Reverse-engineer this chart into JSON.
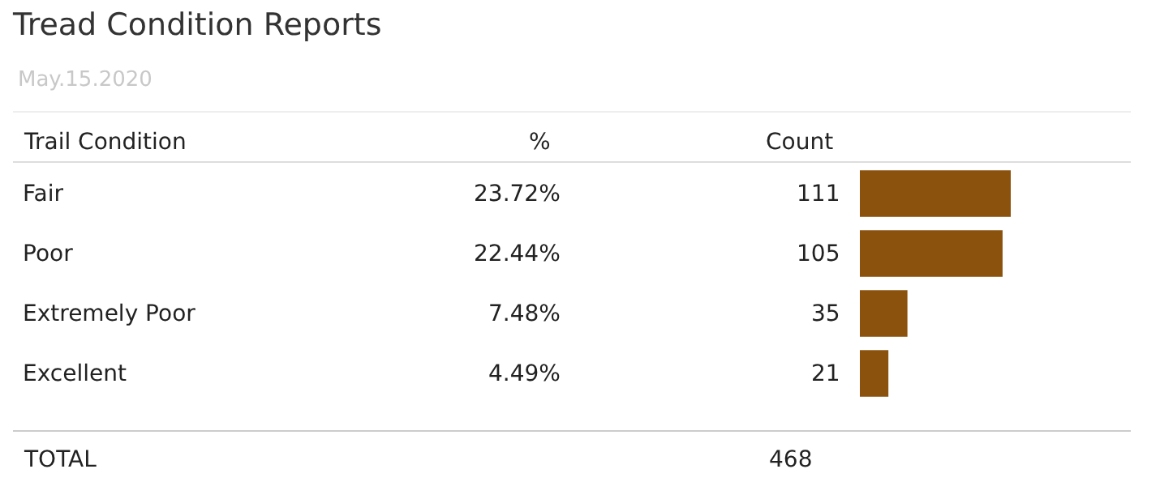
{
  "chart_data": {
    "type": "bar",
    "orientation": "horizontal",
    "title": "Tread Condition Reports",
    "subtitle": "May.15.2020",
    "ylabel": "Trail Condition",
    "categories": [
      "Fair",
      "Poor",
      "Extremely Poor",
      "Excellent"
    ],
    "values": [
      111,
      105,
      35,
      21
    ],
    "color": "#8b520e",
    "data_labels": true,
    "annotations": [
      "%",
      "Count",
      "23.72%",
      "22.44%",
      "7.48%",
      "4.49%",
      "TOTAL",
      "468"
    ]
  }
}
